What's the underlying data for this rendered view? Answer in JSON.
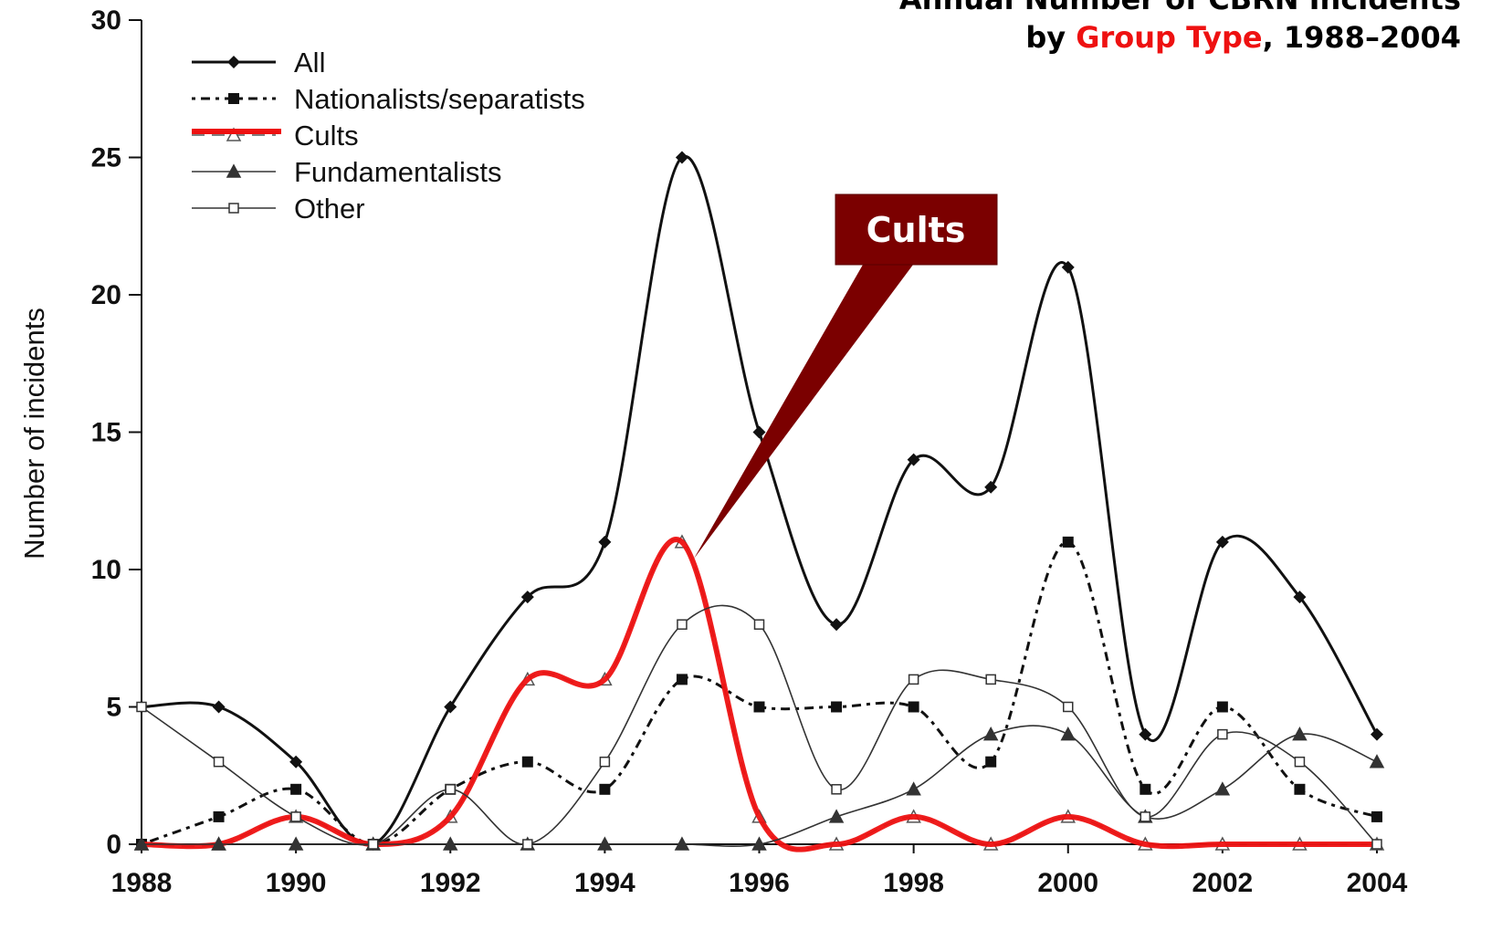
{
  "chart_data": {
    "type": "line",
    "title": "Annual Number of CBRN Incidents",
    "subtitle": [
      "by ",
      "Group Type",
      ", 1988–2004"
    ],
    "y_label": "Number of incidents",
    "annotation": "Cults",
    "x": [
      1988,
      1989,
      1990,
      1991,
      1992,
      1993,
      1994,
      1995,
      1996,
      1997,
      1998,
      1999,
      2000,
      2001,
      2002,
      2003,
      2004
    ],
    "xlim": [
      1988,
      2004
    ],
    "xticks": [
      1988,
      1990,
      1992,
      1994,
      1996,
      1998,
      2000,
      2002,
      2004
    ],
    "ylim": [
      0,
      30
    ],
    "yticks": [
      0,
      5,
      10,
      15,
      20,
      25,
      30
    ],
    "grid": false,
    "legend": "top-left",
    "series": [
      {
        "name": "All",
        "color": "#111111",
        "values": [
          5,
          5,
          3,
          0,
          5,
          9,
          11,
          25,
          15,
          8,
          14,
          13,
          21,
          4,
          11,
          9,
          4
        ]
      },
      {
        "name": "Nationalists/separatists",
        "color": "#111111",
        "values": [
          0,
          1,
          2,
          0,
          2,
          3,
          2,
          6,
          5,
          5,
          5,
          3,
          11,
          2,
          5,
          2,
          1
        ]
      },
      {
        "name": "Cults",
        "color": "#555555",
        "highlight_color": "#ee1111",
        "values": [
          0,
          0,
          1,
          0,
          1,
          6,
          6,
          11,
          1,
          0,
          1,
          0,
          1,
          0,
          0,
          0,
          0
        ]
      },
      {
        "name": "Fundamentalists",
        "color": "#333333",
        "values": [
          0,
          0,
          0,
          0,
          0,
          0,
          0,
          0,
          0,
          1,
          2,
          4,
          4,
          1,
          2,
          4,
          3
        ]
      },
      {
        "name": "Other",
        "color": "#333333",
        "values": [
          5,
          3,
          1,
          0,
          2,
          0,
          3,
          8,
          8,
          2,
          6,
          6,
          5,
          1,
          4,
          3,
          0
        ]
      }
    ]
  }
}
